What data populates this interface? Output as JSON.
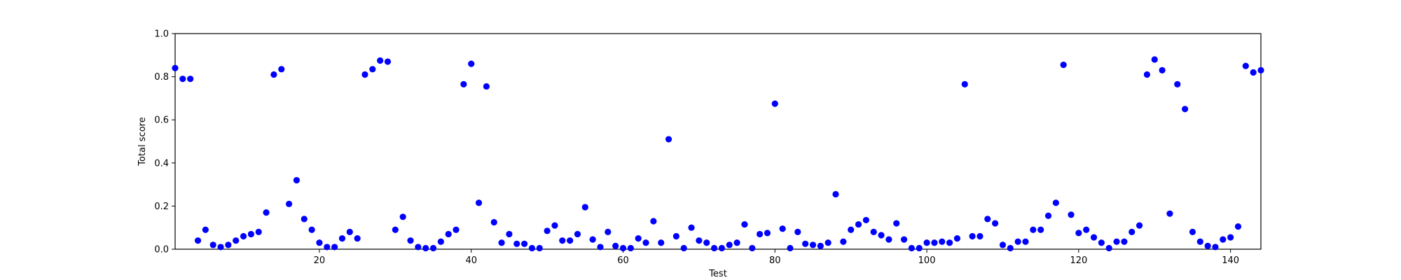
{
  "chart_data": {
    "type": "scatter",
    "title": "",
    "xlabel": "Test",
    "ylabel": "Total score",
    "xlim": [
      1,
      144
    ],
    "ylim": [
      0,
      1.0
    ],
    "xticks": [
      20,
      40,
      60,
      80,
      100,
      120,
      140
    ],
    "yticks": [
      0.0,
      0.2,
      0.4,
      0.6,
      0.8,
      1.0
    ],
    "grid": false,
    "legend": "none",
    "marker_color": "#0000ff",
    "series": [
      {
        "x": [
          1,
          2,
          3,
          4,
          5,
          6,
          7,
          8,
          9,
          10,
          11,
          12,
          13,
          14,
          15,
          16,
          17,
          18,
          19,
          20,
          21,
          22,
          23,
          24,
          25,
          26,
          27,
          28,
          29,
          30,
          31,
          32,
          33,
          34,
          35,
          36,
          37,
          38,
          39,
          40,
          41,
          42,
          43,
          44,
          45,
          46,
          47,
          48,
          49,
          50,
          51,
          52,
          53,
          54,
          55,
          56,
          57,
          58,
          59,
          60,
          61,
          62,
          63,
          64,
          65,
          66,
          67,
          68,
          69,
          70,
          71,
          72,
          73,
          74,
          75,
          76,
          77,
          78,
          79,
          80,
          81,
          82,
          83,
          84,
          85,
          86,
          87,
          88,
          89,
          90,
          91,
          92,
          93,
          94,
          95,
          96,
          97,
          98,
          99,
          100,
          101,
          102,
          103,
          104,
          105,
          106,
          107,
          108,
          109,
          110,
          111,
          112,
          113,
          114,
          115,
          116,
          117,
          118,
          119,
          120,
          121,
          122,
          123,
          124,
          125,
          126,
          127,
          128,
          129,
          130,
          131,
          132,
          133,
          134,
          135,
          136,
          137,
          138,
          139,
          140,
          141,
          142,
          143,
          144
        ],
        "y": [
          0.84,
          0.79,
          0.79,
          0.04,
          0.09,
          0.02,
          0.01,
          0.02,
          0.04,
          0.06,
          0.07,
          0.08,
          0.17,
          0.81,
          0.835,
          0.21,
          0.32,
          0.14,
          0.09,
          0.03,
          0.01,
          0.01,
          0.05,
          0.08,
          0.05,
          0.81,
          0.835,
          0.875,
          0.87,
          0.09,
          0.15,
          0.04,
          0.01,
          0.005,
          0.005,
          0.035,
          0.07,
          0.09,
          0.765,
          0.86,
          0.215,
          0.755,
          0.125,
          0.03,
          0.07,
          0.025,
          0.025,
          0.005,
          0.005,
          0.085,
          0.11,
          0.04,
          0.04,
          0.07,
          0.195,
          0.045,
          0.01,
          0.08,
          0.015,
          0.005,
          0.005,
          0.05,
          0.03,
          0.13,
          0.03,
          0.51,
          0.06,
          0.005,
          0.1,
          0.04,
          0.03,
          0.005,
          0.005,
          0.02,
          0.03,
          0.115,
          0.005,
          0.07,
          0.075,
          0.675,
          0.095,
          0.005,
          0.08,
          0.025,
          0.02,
          0.015,
          0.03,
          0.255,
          0.035,
          0.09,
          0.115,
          0.135,
          0.08,
          0.065,
          0.045,
          0.12,
          0.045,
          0.005,
          0.005,
          0.03,
          0.03,
          0.035,
          0.03,
          0.05,
          0.765,
          0.06,
          0.06,
          0.14,
          0.12,
          0.02,
          0.005,
          0.035,
          0.035,
          0.09,
          0.09,
          0.155,
          0.215,
          0.855,
          0.16,
          0.075,
          0.09,
          0.055,
          0.03,
          0.005,
          0.035,
          0.035,
          0.08,
          0.11,
          0.81,
          0.88,
          0.83,
          0.165,
          0.765,
          0.65,
          0.08,
          0.035,
          0.015,
          0.01,
          0.045,
          0.055,
          0.105,
          0.85,
          0.82,
          0.83
        ]
      }
    ]
  }
}
